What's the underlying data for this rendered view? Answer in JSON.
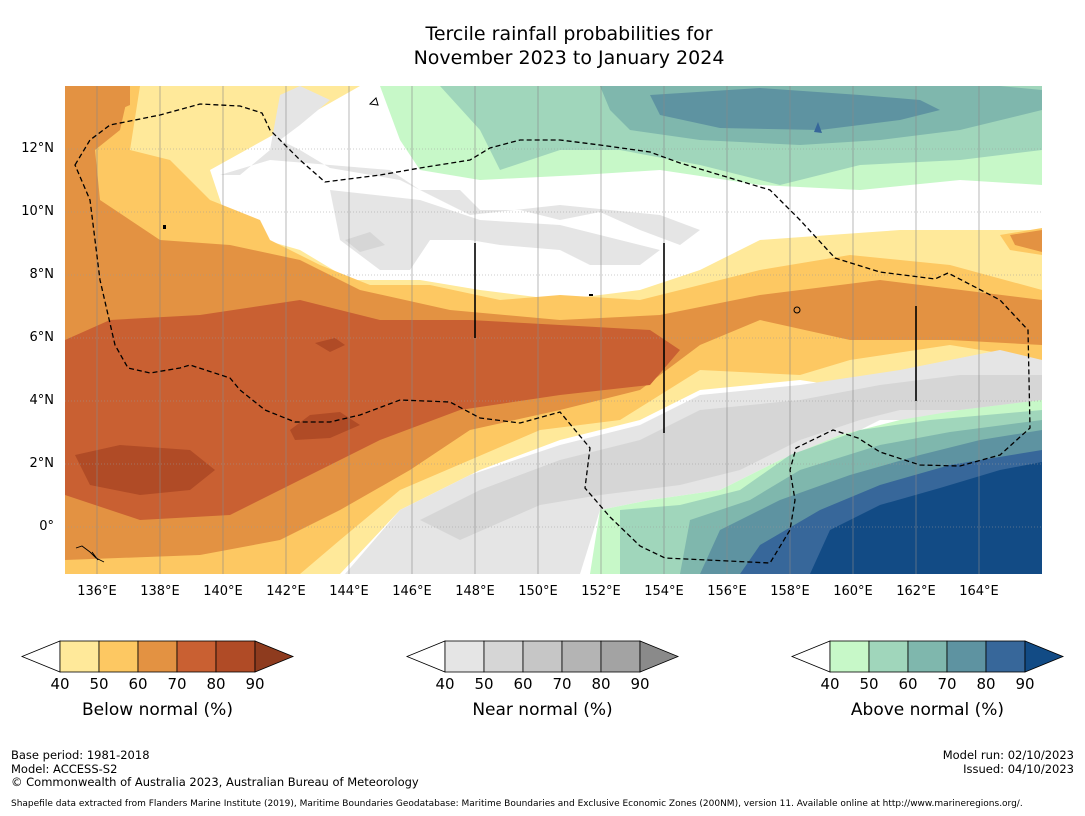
{
  "title": {
    "line1": "Tercile rainfall probabilities for",
    "line2": "November 2023 to January 2024"
  },
  "axes": {
    "lat_labels": [
      "12°N",
      "10°N",
      "8°N",
      "6°N",
      "4°N",
      "2°N",
      "0°"
    ],
    "lon_labels": [
      "136°E",
      "138°E",
      "140°E",
      "142°E",
      "144°E",
      "146°E",
      "148°E",
      "150°E",
      "152°E",
      "154°E",
      "156°E",
      "158°E",
      "160°E",
      "162°E",
      "164°E"
    ]
  },
  "colorbars": [
    {
      "id": "below",
      "title": "Below normal (%)",
      "ticks": [
        "40",
        "50",
        "60",
        "70",
        "80",
        "90"
      ],
      "colors": [
        "#ffffff",
        "#ffe99a",
        "#fdc862",
        "#e39242",
        "#c96032",
        "#b04b26",
        "#8e3b1e"
      ]
    },
    {
      "id": "near",
      "title": "Near normal (%)",
      "ticks": [
        "40",
        "50",
        "60",
        "70",
        "80",
        "90"
      ],
      "colors": [
        "#ffffff",
        "#e5e5e5",
        "#d6d6d6",
        "#c6c6c6",
        "#b4b4b4",
        "#a3a3a3",
        "#8a8a8a"
      ]
    },
    {
      "id": "above",
      "title": "Above normal (%)",
      "ticks": [
        "40",
        "50",
        "60",
        "70",
        "80",
        "90"
      ],
      "colors": [
        "#ffffff",
        "#c7f8c8",
        "#a0d6bb",
        "#7fb7ad",
        "#5e93a1",
        "#37679a",
        "#124b85"
      ]
    }
  ],
  "footer": {
    "base_period": "Base period: 1981-2018",
    "model": "Model: ACCESS-S2",
    "copyright": "© Commonwealth of Australia 2023, Australian Bureau of Meteorology",
    "model_run": "Model run: 02/10/2023",
    "issued": "Issued: 04/10/2023",
    "shapefile": "Shapefile data extracted from Flanders Marine Institute (2019), Maritime Boundaries Geodatabase: Maritime Boundaries and Exclusive Economic Zones (200NM), version 11. Available online at http://www.marineregions.org/."
  }
}
